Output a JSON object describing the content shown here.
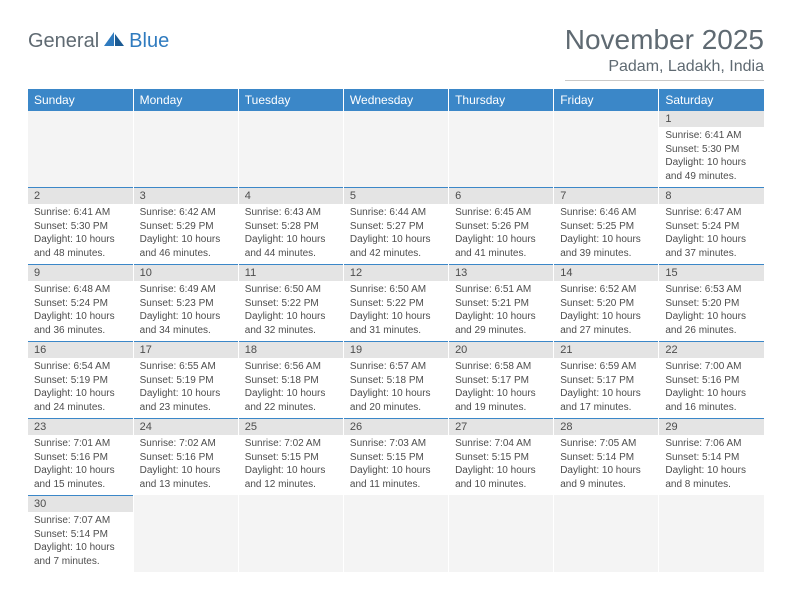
{
  "logo": {
    "part1": "General",
    "part2": "Blue"
  },
  "title": "November 2025",
  "subtitle": "Padam, Ladakh, India",
  "colors": {
    "header_bg": "#3b87c8",
    "header_text": "#ffffff",
    "daynum_bg": "#e4e4e4",
    "body_text": "#4d4d4d",
    "title_text": "#5f6a72",
    "logo_blue": "#2f7bbf",
    "row_divider": "#3b87c8"
  },
  "days_of_week": [
    "Sunday",
    "Monday",
    "Tuesday",
    "Wednesday",
    "Thursday",
    "Friday",
    "Saturday"
  ],
  "weeks": [
    [
      null,
      null,
      null,
      null,
      null,
      null,
      {
        "n": "1",
        "sr": "6:41 AM",
        "ss": "5:30 PM",
        "dl": "10 hours and 49 minutes."
      }
    ],
    [
      {
        "n": "2",
        "sr": "6:41 AM",
        "ss": "5:30 PM",
        "dl": "10 hours and 48 minutes."
      },
      {
        "n": "3",
        "sr": "6:42 AM",
        "ss": "5:29 PM",
        "dl": "10 hours and 46 minutes."
      },
      {
        "n": "4",
        "sr": "6:43 AM",
        "ss": "5:28 PM",
        "dl": "10 hours and 44 minutes."
      },
      {
        "n": "5",
        "sr": "6:44 AM",
        "ss": "5:27 PM",
        "dl": "10 hours and 42 minutes."
      },
      {
        "n": "6",
        "sr": "6:45 AM",
        "ss": "5:26 PM",
        "dl": "10 hours and 41 minutes."
      },
      {
        "n": "7",
        "sr": "6:46 AM",
        "ss": "5:25 PM",
        "dl": "10 hours and 39 minutes."
      },
      {
        "n": "8",
        "sr": "6:47 AM",
        "ss": "5:24 PM",
        "dl": "10 hours and 37 minutes."
      }
    ],
    [
      {
        "n": "9",
        "sr": "6:48 AM",
        "ss": "5:24 PM",
        "dl": "10 hours and 36 minutes."
      },
      {
        "n": "10",
        "sr": "6:49 AM",
        "ss": "5:23 PM",
        "dl": "10 hours and 34 minutes."
      },
      {
        "n": "11",
        "sr": "6:50 AM",
        "ss": "5:22 PM",
        "dl": "10 hours and 32 minutes."
      },
      {
        "n": "12",
        "sr": "6:50 AM",
        "ss": "5:22 PM",
        "dl": "10 hours and 31 minutes."
      },
      {
        "n": "13",
        "sr": "6:51 AM",
        "ss": "5:21 PM",
        "dl": "10 hours and 29 minutes."
      },
      {
        "n": "14",
        "sr": "6:52 AM",
        "ss": "5:20 PM",
        "dl": "10 hours and 27 minutes."
      },
      {
        "n": "15",
        "sr": "6:53 AM",
        "ss": "5:20 PM",
        "dl": "10 hours and 26 minutes."
      }
    ],
    [
      {
        "n": "16",
        "sr": "6:54 AM",
        "ss": "5:19 PM",
        "dl": "10 hours and 24 minutes."
      },
      {
        "n": "17",
        "sr": "6:55 AM",
        "ss": "5:19 PM",
        "dl": "10 hours and 23 minutes."
      },
      {
        "n": "18",
        "sr": "6:56 AM",
        "ss": "5:18 PM",
        "dl": "10 hours and 22 minutes."
      },
      {
        "n": "19",
        "sr": "6:57 AM",
        "ss": "5:18 PM",
        "dl": "10 hours and 20 minutes."
      },
      {
        "n": "20",
        "sr": "6:58 AM",
        "ss": "5:17 PM",
        "dl": "10 hours and 19 minutes."
      },
      {
        "n": "21",
        "sr": "6:59 AM",
        "ss": "5:17 PM",
        "dl": "10 hours and 17 minutes."
      },
      {
        "n": "22",
        "sr": "7:00 AM",
        "ss": "5:16 PM",
        "dl": "10 hours and 16 minutes."
      }
    ],
    [
      {
        "n": "23",
        "sr": "7:01 AM",
        "ss": "5:16 PM",
        "dl": "10 hours and 15 minutes."
      },
      {
        "n": "24",
        "sr": "7:02 AM",
        "ss": "5:16 PM",
        "dl": "10 hours and 13 minutes."
      },
      {
        "n": "25",
        "sr": "7:02 AM",
        "ss": "5:15 PM",
        "dl": "10 hours and 12 minutes."
      },
      {
        "n": "26",
        "sr": "7:03 AM",
        "ss": "5:15 PM",
        "dl": "10 hours and 11 minutes."
      },
      {
        "n": "27",
        "sr": "7:04 AM",
        "ss": "5:15 PM",
        "dl": "10 hours and 10 minutes."
      },
      {
        "n": "28",
        "sr": "7:05 AM",
        "ss": "5:14 PM",
        "dl": "10 hours and 9 minutes."
      },
      {
        "n": "29",
        "sr": "7:06 AM",
        "ss": "5:14 PM",
        "dl": "10 hours and 8 minutes."
      }
    ],
    [
      {
        "n": "30",
        "sr": "7:07 AM",
        "ss": "5:14 PM",
        "dl": "10 hours and 7 minutes."
      },
      null,
      null,
      null,
      null,
      null,
      null
    ]
  ],
  "labels": {
    "sunrise": "Sunrise:",
    "sunset": "Sunset:",
    "daylight": "Daylight:"
  }
}
